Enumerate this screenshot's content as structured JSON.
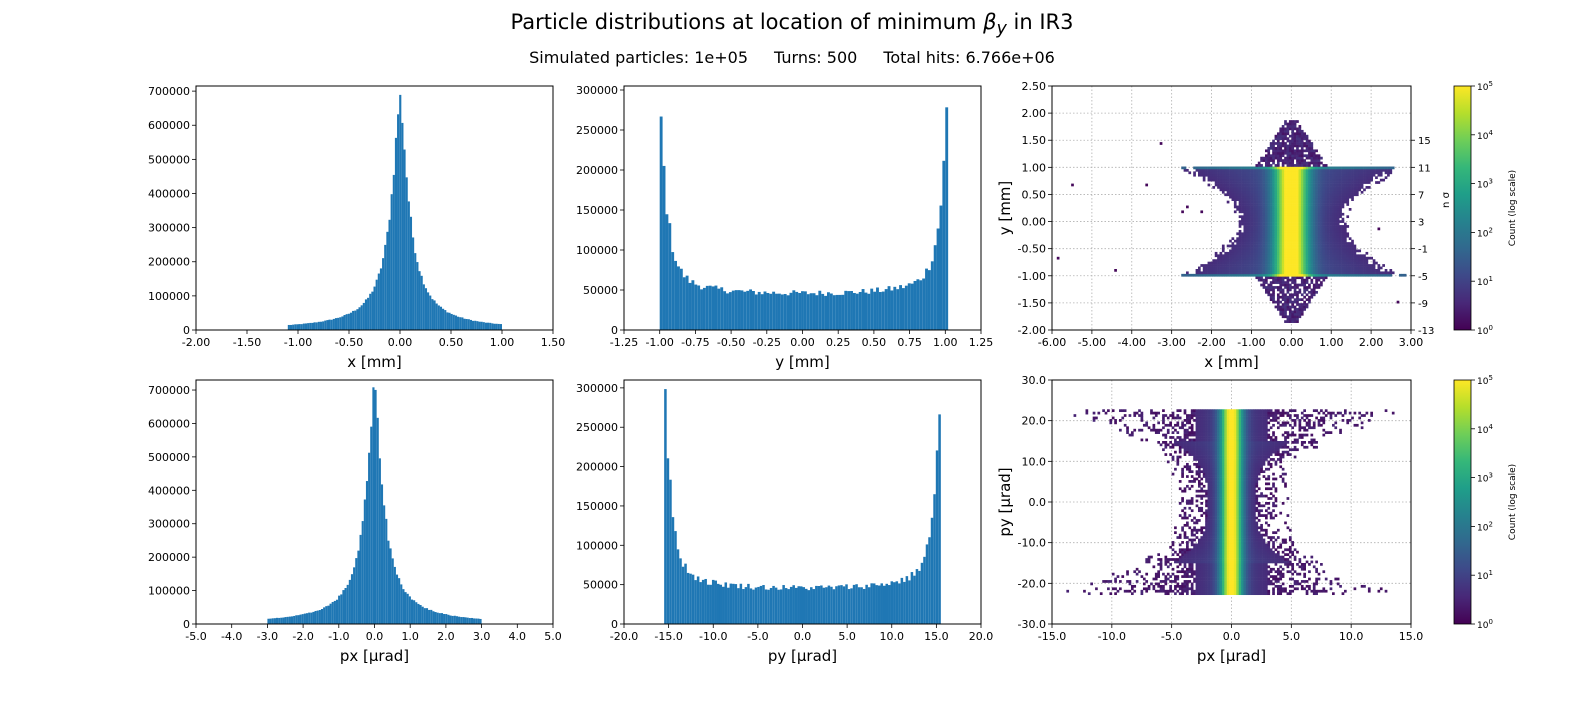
{
  "figure": {
    "title_prefix": "Particle distributions at location of minimum ",
    "title_symbol": "β",
    "title_subscript": "y",
    "title_suffix": " in IR3",
    "subtitle_particles": "Simulated particles: 1e+05",
    "subtitle_turns": "Turns: 500",
    "subtitle_hits": "Total hits: 6.766e+06"
  },
  "colors": {
    "bar": "#1f77b4",
    "grid": "#b0b0b0",
    "viridis": [
      "#440154",
      "#482878",
      "#3e4989",
      "#31688e",
      "#26828e",
      "#1f9e89",
      "#35b779",
      "#6ece58",
      "#b5de2b",
      "#fde725"
    ]
  },
  "chart_data": [
    {
      "type": "bar",
      "id": "x-hist",
      "xlabel": "x [mm]",
      "ylabel": "",
      "xlim": [
        -2.0,
        1.5
      ],
      "ylim": [
        0,
        715000
      ],
      "xticks": [
        "-2.00",
        "-1.50",
        "-1.00",
        "-0.50",
        "0.00",
        "0.50",
        "1.00",
        "1.50"
      ],
      "yticks": [
        "0",
        "100000",
        "200000",
        "300000",
        "400000",
        "500000",
        "600000",
        "700000"
      ],
      "profile": {
        "kind": "peak",
        "center": 0.0,
        "peak": 680000,
        "width": 0.1,
        "range": [
          -1.1,
          1.0
        ],
        "bins": 100
      }
    },
    {
      "type": "bar",
      "id": "y-hist",
      "xlabel": "y [mm]",
      "ylabel": "",
      "xlim": [
        -1.25,
        1.25
      ],
      "ylim": [
        0,
        305000
      ],
      "xticks": [
        "-1.25",
        "-1.00",
        "-0.75",
        "-0.50",
        "-0.25",
        "0.00",
        "0.25",
        "0.50",
        "0.75",
        "1.00",
        "1.25"
      ],
      "yticks": [
        "0",
        "50000",
        "100000",
        "150000",
        "200000",
        "250000",
        "300000"
      ],
      "profile": {
        "kind": "edges",
        "range": [
          -1.0,
          1.02
        ],
        "edge_peaks": [
          277000,
          288000
        ],
        "floor": 45000,
        "bins": 100
      }
    },
    {
      "type": "heatmap",
      "id": "xy-2d",
      "xlabel": "x [mm]",
      "ylabel": "y [mm]",
      "xlim": [
        -6.0,
        3.0
      ],
      "ylim": [
        -2.0,
        2.5
      ],
      "xticks": [
        "-6.00",
        "-5.00",
        "-4.00",
        "-3.00",
        "-2.00",
        "-1.00",
        "0.00",
        "1.00",
        "2.00",
        "3.00"
      ],
      "yticks": [
        "-2.00",
        "-1.50",
        "-1.00",
        "-0.50",
        "0.00",
        "0.50",
        "1.00",
        "1.50",
        "2.00",
        "2.50"
      ],
      "secondary_axis_label": "n σ",
      "secondary_ticks": [
        "-13",
        "-9",
        "-5",
        "-1",
        "3",
        "7",
        "11",
        "15"
      ],
      "secondary_tick_values": [
        -2.0,
        -1.5,
        -1.0,
        -0.5,
        0.0,
        0.5,
        1.0,
        1.5
      ],
      "colorbar_label": "Count (log scale)",
      "colorbar_ticks": [
        "10",
        "10",
        "10",
        "10",
        "10",
        "10"
      ],
      "colorbar_exponents": [
        "0",
        "1",
        "2",
        "3",
        "4",
        "5"
      ],
      "grid": true,
      "shape": {
        "core_half_height": 1.0,
        "core_x_range": [
          -2.7,
          2.5
        ],
        "edge_band": [
          -1.0,
          1.0
        ],
        "tail_y_range": [
          -1.8,
          1.9
        ],
        "core_center": 0.0
      }
    },
    {
      "type": "bar",
      "id": "px-hist",
      "xlabel": "px [μrad]",
      "ylabel": "",
      "xlim": [
        -5.0,
        5.0
      ],
      "ylim": [
        0,
        730000
      ],
      "xticks": [
        "-5.0",
        "-4.0",
        "-3.0",
        "-2.0",
        "-1.0",
        "0.0",
        "1.0",
        "2.0",
        "3.0",
        "4.0",
        "5.0"
      ],
      "yticks": [
        "0",
        "100000",
        "200000",
        "300000",
        "400000",
        "500000",
        "600000",
        "700000"
      ],
      "profile": {
        "kind": "peak",
        "center": 0.0,
        "peak": 700000,
        "width": 0.28,
        "range": [
          -3.0,
          3.0
        ],
        "bins": 100
      }
    },
    {
      "type": "bar",
      "id": "py-hist",
      "xlabel": "py [μrad]",
      "ylabel": "",
      "xlim": [
        -20.0,
        20.0
      ],
      "ylim": [
        0,
        310000
      ],
      "xticks": [
        "-20.0",
        "-15.0",
        "-10.0",
        "-5.0",
        "0.0",
        "5.0",
        "10.0",
        "15.0",
        "20.0"
      ],
      "yticks": [
        "0",
        "50000",
        "100000",
        "150000",
        "200000",
        "250000",
        "300000"
      ],
      "profile": {
        "kind": "edges",
        "range": [
          -15.5,
          15.5
        ],
        "edge_peaks": [
          295000,
          278000
        ],
        "floor": 45000,
        "bins": 110
      }
    },
    {
      "type": "heatmap",
      "id": "pxpy-2d",
      "xlabel": "px [μrad]",
      "ylabel": "py [μrad]",
      "xlim": [
        -15.0,
        15.0
      ],
      "ylim": [
        -30.0,
        30.0
      ],
      "xticks": [
        "-15.0",
        "-10.0",
        "-5.0",
        "0.0",
        "5.0",
        "10.0",
        "15.0"
      ],
      "yticks": [
        "-30.0",
        "-20.0",
        "-10.0",
        "0.0",
        "10.0",
        "20.0",
        "30.0"
      ],
      "colorbar_label": "Count (log scale)",
      "colorbar_ticks": [
        "10",
        "10",
        "10",
        "10",
        "10",
        "10"
      ],
      "colorbar_exponents": [
        "0",
        "1",
        "2",
        "3",
        "4",
        "5"
      ],
      "grid": true,
      "shape": {
        "core_half_height": 15.0,
        "outer_half_height": 22.5,
        "core_center": 0.0
      }
    }
  ]
}
